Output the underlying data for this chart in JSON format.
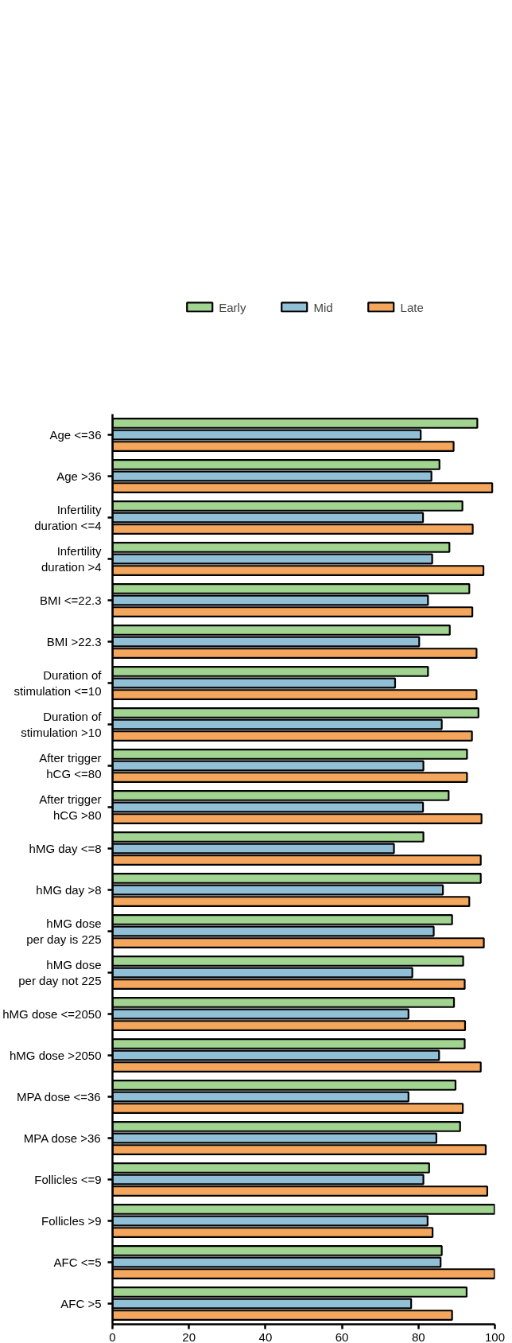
{
  "chart_data": {
    "type": "bar",
    "orientation": "horizontal",
    "categories": [
      "Age <=36",
      "Age >36",
      "Infertility\nduration <=4",
      "Infertility\nduration >4",
      "BMI <=22.3",
      "BMI >22.3",
      "Duration of\nstimulation <=10",
      "Duration of\nstimulation >10",
      "After trigger\nhCG <=80",
      "After trigger\nhCG >80",
      "hMG day <=8",
      "hMG day >8",
      "hMG dose\nper day is 225",
      "hMG dose\nper day not 225",
      "hMG dose <=2050",
      "hMG dose >2050",
      "MPA dose <=36",
      "MPA dose >36",
      "Follicles <=9",
      "Follicles >9",
      "AFC <=5",
      "AFC >5"
    ],
    "series": [
      {
        "name": "Early",
        "color": "#a1d490",
        "values": [
          95.4,
          85.5,
          91.5,
          88.1,
          93.3,
          88.2,
          82.5,
          95.7,
          92.7,
          87.9,
          81.3,
          96.3,
          88.8,
          91.7,
          89.3,
          92.1,
          89.7,
          90.9,
          82.8,
          99.9,
          86.1,
          92.6
        ]
      },
      {
        "name": "Mid",
        "color": "#90bfd6",
        "values": [
          80.6,
          83.4,
          81.2,
          83.6,
          82.5,
          80.2,
          73.9,
          86.1,
          81.3,
          81.2,
          73.6,
          86.4,
          84.0,
          78.4,
          77.4,
          85.4,
          77.4,
          84.7,
          81.3,
          82.4,
          85.8,
          78.1
        ]
      },
      {
        "name": "Late",
        "color": "#f4a75c",
        "values": [
          89.2,
          99.3,
          94.2,
          97.0,
          94.1,
          95.2,
          95.2,
          94.0,
          92.7,
          96.5,
          96.3,
          93.3,
          97.1,
          92.1,
          92.2,
          96.3,
          91.6,
          97.6,
          98.0,
          83.7,
          99.9,
          88.8
        ]
      }
    ],
    "xlim": [
      0,
      100
    ],
    "xticks": [
      0,
      20,
      40,
      60,
      80,
      100
    ],
    "grid": false,
    "legend": "top"
  }
}
